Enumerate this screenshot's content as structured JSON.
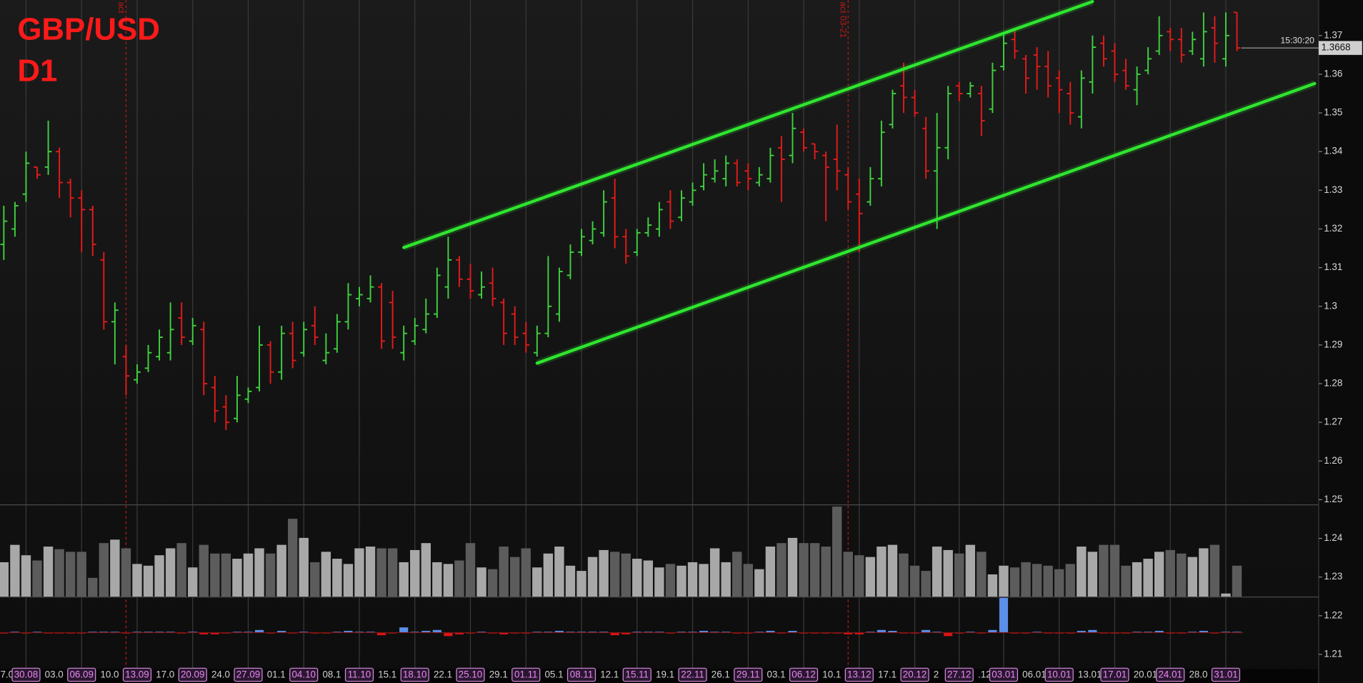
{
  "chart_data": {
    "type": "ohlc",
    "title": "GBP/USD",
    "subtitle": "D1",
    "time": "15:30:20",
    "categories": [
      "7.0",
      null,
      null,
      null,
      "03.0",
      null,
      null,
      null,
      null,
      "10.0",
      null,
      null,
      null,
      null,
      "17.0",
      null,
      null,
      null,
      null,
      "24.0",
      null,
      null,
      null,
      null,
      "01.1",
      null,
      null,
      null,
      null,
      "08.1",
      null,
      null,
      null,
      null,
      "15.1",
      null,
      null,
      null,
      null,
      "22.1",
      null,
      null,
      null,
      null,
      "29.1",
      null,
      null,
      null,
      null,
      "05.1",
      null,
      null,
      null,
      null,
      "12.1",
      null,
      null,
      null,
      null,
      "19.1",
      null,
      null,
      null,
      null,
      "26.1",
      null,
      null,
      null,
      null,
      "03.1",
      null,
      null,
      null,
      null,
      "10.1",
      null,
      null,
      null,
      null,
      "17.1",
      null,
      null,
      null,
      null,
      "2",
      null,
      null,
      null,
      ".12",
      null,
      null,
      null,
      "06.01",
      null,
      null,
      null,
      null,
      "13.01",
      null,
      null,
      null,
      null,
      "20.01",
      null,
      null,
      null,
      null,
      "28.0",
      null,
      null,
      null,
      "2"
    ],
    "highlight_categories": [
      null,
      null,
      "30.08",
      null,
      null,
      null,
      null,
      "06.09",
      null,
      null,
      null,
      null,
      "13.09",
      null,
      null,
      null,
      null,
      "20.09",
      null,
      null,
      null,
      null,
      "27.09",
      null,
      null,
      null,
      null,
      "04.10",
      null,
      null,
      null,
      null,
      "11.10",
      null,
      null,
      null,
      null,
      "18.10",
      null,
      null,
      null,
      null,
      "25.10",
      null,
      null,
      null,
      null,
      "01.11",
      null,
      null,
      null,
      null,
      "08.11",
      null,
      null,
      null,
      null,
      "15.11",
      null,
      null,
      null,
      null,
      "22.11",
      null,
      null,
      null,
      null,
      "29.11",
      null,
      null,
      null,
      null,
      "06.12",
      null,
      null,
      null,
      null,
      "13.12",
      null,
      null,
      null,
      null,
      "20.12",
      null,
      null,
      null,
      "27.12",
      null,
      null,
      null,
      "03.01",
      null,
      null,
      null,
      null,
      "10.01",
      null,
      null,
      null,
      null,
      "17.01",
      null,
      null,
      null,
      null,
      "24.01",
      null,
      null,
      null,
      null,
      "31.01",
      null
    ],
    "open": [
      1.316,
      1.32,
      1.329,
      1.336,
      1.336,
      1.34,
      1.332,
      1.328,
      1.325,
      1.312,
      1.296,
      1.287,
      1.281,
      1.284,
      1.287,
      1.288,
      1.297,
      1.291,
      1.294,
      1.279,
      1.274,
      1.271,
      1.276,
      1.279,
      1.29,
      1.283,
      1.293,
      1.288,
      1.295,
      1.286,
      1.289,
      1.296,
      1.302,
      1.302,
      1.305,
      1.301,
      1.288,
      1.291,
      1.294,
      1.298,
      1.305,
      1.312,
      1.307,
      1.303,
      1.306,
      1.301,
      1.298,
      1.293,
      1.288,
      1.293,
      1.298,
      1.308,
      1.314,
      1.317,
      1.319,
      1.328,
      1.318,
      1.314,
      1.319,
      1.32,
      1.327,
      1.323,
      1.327,
      1.331,
      1.333,
      1.333,
      1.337,
      1.335,
      1.332,
      1.333,
      1.341,
      1.339,
      1.345,
      1.342,
      1.339,
      1.338,
      1.334,
      1.329,
      1.327,
      1.333,
      1.347,
      1.357,
      1.354,
      1.346,
      1.335,
      1.341,
      1.357,
      1.355,
      1.355,
      1.351,
      1.362,
      1.369,
      1.364,
      1.365,
      1.362,
      1.359,
      1.355,
      1.349,
      1.358,
      1.368,
      1.366,
      1.361,
      1.356,
      1.361,
      1.366,
      1.371,
      1.369,
      1.366,
      1.364,
      1.372,
      1.364,
      1.376
    ],
    "high": [
      1.326,
      1.327,
      1.34,
      1.336,
      1.348,
      1.341,
      1.333,
      1.33,
      1.326,
      1.314,
      1.301,
      1.29,
      1.285,
      1.29,
      1.294,
      1.301,
      1.301,
      1.297,
      1.296,
      1.282,
      1.277,
      1.282,
      1.279,
      1.295,
      1.291,
      1.295,
      1.296,
      1.296,
      1.3,
      1.293,
      1.298,
      1.306,
      1.305,
      1.308,
      1.306,
      1.304,
      1.295,
      1.297,
      1.302,
      1.31,
      1.318,
      1.313,
      1.311,
      1.309,
      1.31,
      1.302,
      1.3,
      1.296,
      1.295,
      1.313,
      1.31,
      1.316,
      1.32,
      1.322,
      1.33,
      1.333,
      1.32,
      1.32,
      1.323,
      1.327,
      1.33,
      1.33,
      1.332,
      1.337,
      1.338,
      1.339,
      1.338,
      1.337,
      1.336,
      1.341,
      1.344,
      1.35,
      1.346,
      1.342,
      1.34,
      1.347,
      1.336,
      1.333,
      1.336,
      1.348,
      1.356,
      1.363,
      1.356,
      1.349,
      1.35,
      1.357,
      1.358,
      1.358,
      1.357,
      1.363,
      1.371,
      1.372,
      1.365,
      1.367,
      1.366,
      1.361,
      1.358,
      1.361,
      1.37,
      1.37,
      1.368,
      1.364,
      1.362,
      1.367,
      1.375,
      1.372,
      1.372,
      1.371,
      1.376,
      1.375,
      1.376,
      1.376
    ],
    "low": [
      1.312,
      1.318,
      1.327,
      1.333,
      1.334,
      1.328,
      1.323,
      1.314,
      1.313,
      1.294,
      1.285,
      1.277,
      1.28,
      1.283,
      1.286,
      1.286,
      1.29,
      1.29,
      1.277,
      1.27,
      1.268,
      1.27,
      1.275,
      1.278,
      1.28,
      1.281,
      1.284,
      1.287,
      1.29,
      1.285,
      1.288,
      1.294,
      1.3,
      1.301,
      1.289,
      1.289,
      1.286,
      1.29,
      1.293,
      1.297,
      1.302,
      1.305,
      1.302,
      1.302,
      1.3,
      1.29,
      1.29,
      1.288,
      1.287,
      1.292,
      1.296,
      1.307,
      1.313,
      1.316,
      1.318,
      1.315,
      1.311,
      1.313,
      1.318,
      1.318,
      1.32,
      1.322,
      1.326,
      1.33,
      1.332,
      1.331,
      1.331,
      1.33,
      1.331,
      1.332,
      1.327,
      1.337,
      1.34,
      1.338,
      1.322,
      1.33,
      1.325,
      1.314,
      1.326,
      1.331,
      1.346,
      1.35,
      1.349,
      1.333,
      1.32,
      1.338,
      1.353,
      1.354,
      1.344,
      1.35,
      1.361,
      1.364,
      1.355,
      1.356,
      1.354,
      1.35,
      1.347,
      1.346,
      1.355,
      1.362,
      1.358,
      1.356,
      1.352,
      1.36,
      1.365,
      1.366,
      1.363,
      1.365,
      1.362,
      1.363,
      1.362,
      1.366
    ],
    "close": [
      1.322,
      1.326,
      1.337,
      1.334,
      1.34,
      1.332,
      1.328,
      1.325,
      1.316,
      1.296,
      1.299,
      1.282,
      1.283,
      1.288,
      1.292,
      1.294,
      1.292,
      1.295,
      1.28,
      1.273,
      1.27,
      1.277,
      1.278,
      1.29,
      1.283,
      1.293,
      1.286,
      1.294,
      1.292,
      1.288,
      1.296,
      1.303,
      1.303,
      1.305,
      1.291,
      1.292,
      1.293,
      1.295,
      1.298,
      1.308,
      1.312,
      1.307,
      1.304,
      1.305,
      1.302,
      1.293,
      1.292,
      1.29,
      1.293,
      1.3,
      1.309,
      1.314,
      1.318,
      1.32,
      1.327,
      1.318,
      1.313,
      1.319,
      1.321,
      1.325,
      1.322,
      1.328,
      1.33,
      1.334,
      1.335,
      1.337,
      1.332,
      1.333,
      1.334,
      1.339,
      1.338,
      1.346,
      1.341,
      1.34,
      1.336,
      1.335,
      1.327,
      1.324,
      1.333,
      1.345,
      1.355,
      1.354,
      1.35,
      1.335,
      1.341,
      1.355,
      1.355,
      1.357,
      1.348,
      1.361,
      1.368,
      1.366,
      1.359,
      1.362,
      1.357,
      1.356,
      1.35,
      1.359,
      1.367,
      1.364,
      1.36,
      1.357,
      1.36,
      1.364,
      1.37,
      1.369,
      1.365,
      1.369,
      1.371,
      1.368,
      1.37,
      1.3668
    ],
    "volume": [
      40,
      60,
      48,
      42,
      58,
      55,
      52,
      52,
      22,
      62,
      66,
      56,
      38,
      36,
      48,
      56,
      62,
      34,
      60,
      50,
      50,
      44,
      50,
      56,
      50,
      60,
      90,
      68,
      40,
      52,
      44,
      38,
      56,
      58,
      56,
      56,
      40,
      54,
      62,
      40,
      38,
      42,
      62,
      34,
      32,
      58,
      46,
      56,
      34,
      50,
      58,
      36,
      30,
      46,
      54,
      52,
      50,
      44,
      42,
      34,
      38,
      36,
      40,
      38,
      56,
      40,
      52,
      38,
      32,
      58,
      62,
      68,
      62,
      62,
      58,
      104,
      52,
      48,
      46,
      58,
      60,
      50,
      36,
      30,
      58,
      54,
      50,
      60,
      52,
      26,
      36,
      34,
      40,
      38,
      36,
      32,
      38,
      58,
      52,
      60,
      60,
      36,
      40,
      44,
      52,
      54,
      50,
      46,
      56,
      60,
      4,
      36
    ],
    "indicator": [
      -1,
      1,
      -1,
      1,
      -1,
      -1,
      -1,
      -1,
      1,
      1,
      1,
      -1,
      1,
      1,
      1,
      1,
      -1,
      1,
      -2,
      -2,
      -1,
      1,
      1,
      3,
      -1,
      2,
      -1,
      1,
      -1,
      -1,
      1,
      2,
      1,
      1,
      -3,
      -1,
      6,
      1,
      2,
      3,
      -4,
      -2,
      -1,
      1,
      -1,
      -2,
      -1,
      -1,
      1,
      1,
      2,
      1,
      1,
      1,
      1,
      -3,
      -2,
      1,
      1,
      1,
      -1,
      1,
      1,
      2,
      1,
      1,
      -1,
      -1,
      1,
      2,
      -1,
      2,
      -1,
      -1,
      -1,
      -1,
      -2,
      -2,
      1,
      3,
      2,
      -1,
      -1,
      3,
      1,
      -4,
      -1,
      1,
      -1,
      3,
      40,
      -1,
      -1,
      1,
      -1,
      -1,
      -1,
      2,
      3,
      -1,
      -1,
      -1,
      1,
      1,
      2,
      -1,
      -1,
      1,
      2,
      -1,
      1,
      1
    ],
    "ylim": [
      1.2062,
      1.3792
    ],
    "yticks": [
      1.21,
      1.22,
      1.23,
      1.24,
      1.25,
      1.26,
      1.27,
      1.28,
      1.29,
      1.3,
      1.31,
      1.32,
      1.33,
      1.34,
      1.35,
      1.36,
      1.37
    ],
    "trendlines": [
      {
        "x": [
          36,
          98
        ],
        "y": [
          1.3152,
          1.3788
        ]
      },
      {
        "x": [
          48,
          118
        ],
        "y": [
          1.2853,
          1.3576
        ]
      }
    ],
    "vlines": [
      {
        "bar": 11,
        "label": "act"
      },
      {
        "bar": 76,
        "label": "act 03-21"
      }
    ],
    "up_color": "#3fcf3f",
    "down_color": "#e31a1a",
    "trend_color": "#2fe62f",
    "volume_up_color": "#a8a8a8",
    "volume_down_color": "#5c5c5c",
    "indicator_up_color": "#5b8fe8",
    "indicator_down_color": "#e01414",
    "title_color": "#ff1a1a"
  }
}
